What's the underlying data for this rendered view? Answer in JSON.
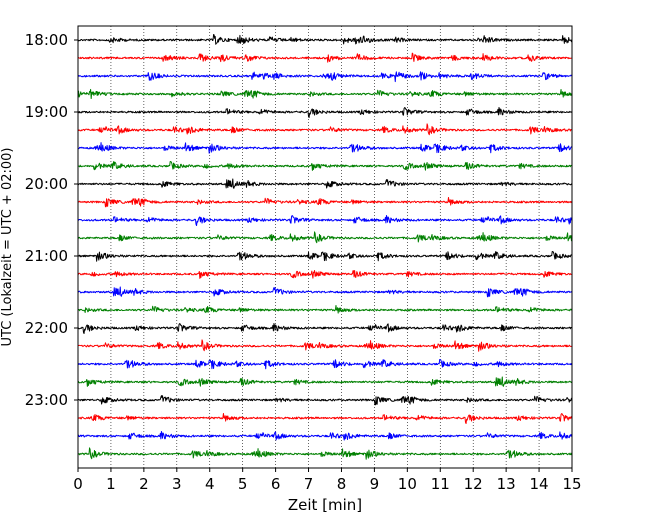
{
  "chart_data": {
    "type": "line",
    "title": "",
    "xlabel": "Zeit  [min]",
    "ylabel": "UTC (Lokalzeit = UTC + 02:00)",
    "xlim": [
      0,
      15
    ],
    "x_ticks": [
      0,
      1,
      2,
      3,
      4,
      5,
      6,
      7,
      8,
      9,
      10,
      11,
      12,
      13,
      14,
      15
    ],
    "x_tick_labels": [
      "0",
      "1",
      "2",
      "3",
      "4",
      "5",
      "6",
      "7",
      "8",
      "9",
      "10",
      "11",
      "12",
      "13",
      "14",
      "15"
    ],
    "y_tick_labels": [
      "18:00",
      "19:00",
      "20:00",
      "21:00",
      "22:00",
      "23:00"
    ],
    "trace_start_minutes": [
      0,
      15,
      30,
      45,
      60,
      75,
      90,
      105,
      120,
      135,
      150,
      165,
      180,
      195,
      210,
      225,
      240,
      255,
      270,
      285,
      300,
      315,
      330,
      345
    ],
    "first_trace_utc": "18:00",
    "last_trace_utc": "23:45",
    "trace_duration_min": 15,
    "trace_colors": [
      "#000000",
      "#ff0000",
      "#0000ff",
      "#008000"
    ],
    "grid": {
      "vertical": true,
      "style": "dotted"
    },
    "legend": "none"
  }
}
